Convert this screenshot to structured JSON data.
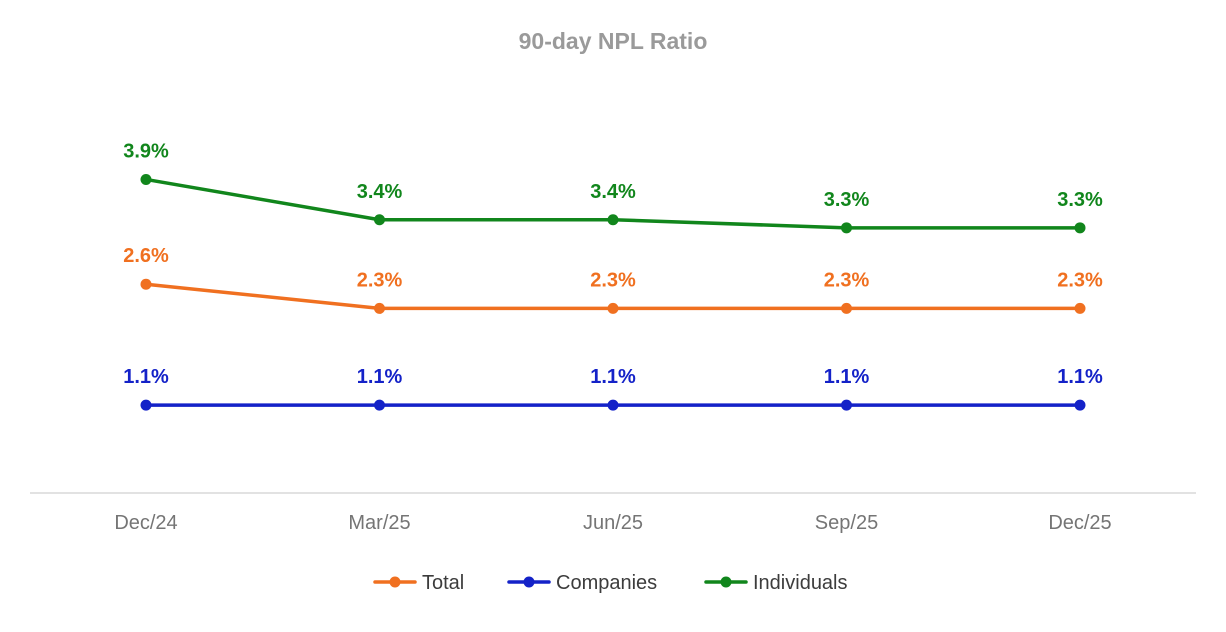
{
  "chart_data": {
    "type": "line",
    "title": "90-day NPL Ratio",
    "xlabel": "",
    "ylabel": "",
    "categories": [
      "Dec/24",
      "Mar/25",
      "Jun/25",
      "Sep/25",
      "Dec/25"
    ],
    "series": [
      {
        "name": "Total",
        "color": "#f07020",
        "values": [
          2.6,
          2.3,
          2.3,
          2.3,
          2.3
        ],
        "labels": [
          "2.6%",
          "2.3%",
          "2.3%",
          "2.3%",
          "2.3%"
        ]
      },
      {
        "name": "Companies",
        "color": "#1422c8",
        "values": [
          1.1,
          1.1,
          1.1,
          1.1,
          1.1
        ],
        "labels": [
          "1.1%",
          "1.1%",
          "1.1%",
          "1.1%",
          "1.1%"
        ]
      },
      {
        "name": "Individuals",
        "color": "#11861c",
        "values": [
          3.9,
          3.4,
          3.4,
          3.3,
          3.3
        ],
        "labels": [
          "3.9%",
          "3.4%",
          "3.4%",
          "3.3%",
          "3.3%"
        ]
      }
    ],
    "y_axis_visible": false,
    "grid": false,
    "legend_position": "bottom",
    "data_labels": "above"
  }
}
